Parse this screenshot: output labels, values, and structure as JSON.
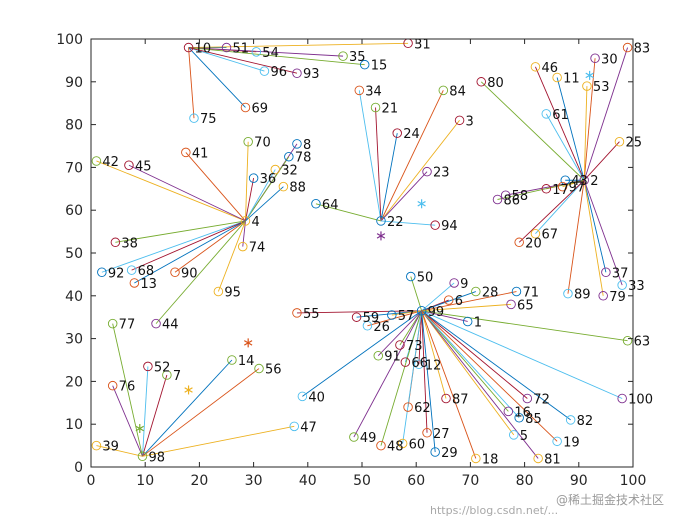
{
  "chart_data": {
    "type": "scatter",
    "title": "",
    "xlabel": "",
    "ylabel": "",
    "xlim": [
      0,
      100
    ],
    "ylim": [
      0,
      100
    ],
    "xticks": [
      0,
      10,
      20,
      30,
      40,
      50,
      60,
      70,
      80,
      90,
      100
    ],
    "yticks": [
      0,
      10,
      20,
      30,
      40,
      50,
      60,
      70,
      80,
      90,
      100
    ],
    "grid": false,
    "legend": "none",
    "points": [
      {
        "id": "1",
        "x": 69.5,
        "y": 34
      },
      {
        "id": "2",
        "x": 91,
        "y": 67
      },
      {
        "id": "3",
        "x": 68,
        "y": 81
      },
      {
        "id": "4",
        "x": 28.5,
        "y": 57.5
      },
      {
        "id": "5",
        "x": 78,
        "y": 7.5
      },
      {
        "id": "6",
        "x": 66,
        "y": 39
      },
      {
        "id": "7",
        "x": 14,
        "y": 21.5
      },
      {
        "id": "8",
        "x": 38,
        "y": 75.5
      },
      {
        "id": "9",
        "x": 67,
        "y": 43
      },
      {
        "id": "10",
        "x": 18,
        "y": 98
      },
      {
        "id": "11",
        "x": 86,
        "y": 91
      },
      {
        "id": "12",
        "x": 60.5,
        "y": 24
      },
      {
        "id": "13",
        "x": 8,
        "y": 43
      },
      {
        "id": "14",
        "x": 26,
        "y": 25
      },
      {
        "id": "15",
        "x": 50.5,
        "y": 94
      },
      {
        "id": "16",
        "x": 77,
        "y": 13
      },
      {
        "id": "17",
        "x": 84,
        "y": 65
      },
      {
        "id": "18",
        "x": 71,
        "y": 2
      },
      {
        "id": "19",
        "x": 86,
        "y": 6
      },
      {
        "id": "20",
        "x": 79,
        "y": 52.5
      },
      {
        "id": "21",
        "x": 52.5,
        "y": 84
      },
      {
        "id": "22",
        "x": 53.5,
        "y": 57.5
      },
      {
        "id": "23",
        "x": 62,
        "y": 69
      },
      {
        "id": "24",
        "x": 56.5,
        "y": 78
      },
      {
        "id": "25",
        "x": 97.5,
        "y": 76
      },
      {
        "id": "26",
        "x": 51,
        "y": 33
      },
      {
        "id": "27",
        "x": 62,
        "y": 8
      },
      {
        "id": "28",
        "x": 71,
        "y": 41
      },
      {
        "id": "29",
        "x": 63.5,
        "y": 3.5
      },
      {
        "id": "30",
        "x": 93,
        "y": 95.5
      },
      {
        "id": "31",
        "x": 58.5,
        "y": 99
      },
      {
        "id": "32",
        "x": 34,
        "y": 69.5
      },
      {
        "id": "33",
        "x": 98,
        "y": 42.5
      },
      {
        "id": "34",
        "x": 49.5,
        "y": 88
      },
      {
        "id": "35",
        "x": 46.5,
        "y": 96
      },
      {
        "id": "36",
        "x": 30,
        "y": 67.5
      },
      {
        "id": "37",
        "x": 95,
        "y": 45.5
      },
      {
        "id": "38",
        "x": 4.5,
        "y": 52.5
      },
      {
        "id": "39",
        "x": 1,
        "y": 5
      },
      {
        "id": "40",
        "x": 39,
        "y": 16.5
      },
      {
        "id": "41",
        "x": 17.5,
        "y": 73.5
      },
      {
        "id": "42",
        "x": 1,
        "y": 71.5
      },
      {
        "id": "43",
        "x": 87.5,
        "y": 67
      },
      {
        "id": "44",
        "x": 12,
        "y": 33.5
      },
      {
        "id": "45",
        "x": 7,
        "y": 70.5
      },
      {
        "id": "46",
        "x": 82,
        "y": 93.5
      },
      {
        "id": "47",
        "x": 37.5,
        "y": 9.5
      },
      {
        "id": "48",
        "x": 53.5,
        "y": 5
      },
      {
        "id": "49",
        "x": 48.5,
        "y": 7
      },
      {
        "id": "50",
        "x": 59,
        "y": 44.5
      },
      {
        "id": "51",
        "x": 25,
        "y": 98
      },
      {
        "id": "52",
        "x": 10.5,
        "y": 23.5
      },
      {
        "id": "53",
        "x": 91.5,
        "y": 89
      },
      {
        "id": "54",
        "x": 30.5,
        "y": 97
      },
      {
        "id": "55",
        "x": 38,
        "y": 36
      },
      {
        "id": "56",
        "x": 31,
        "y": 23
      },
      {
        "id": "57",
        "x": 55.5,
        "y": 35.5
      },
      {
        "id": "58",
        "x": 76.5,
        "y": 63.5
      },
      {
        "id": "59",
        "x": 49,
        "y": 35
      },
      {
        "id": "60",
        "x": 57.5,
        "y": 5.5
      },
      {
        "id": "61",
        "x": 84,
        "y": 82.5
      },
      {
        "id": "62",
        "x": 58.5,
        "y": 14
      },
      {
        "id": "63",
        "x": 99,
        "y": 29.5
      },
      {
        "id": "64",
        "x": 41.5,
        "y": 61.5
      },
      {
        "id": "65",
        "x": 77.5,
        "y": 38
      },
      {
        "id": "66",
        "x": 58,
        "y": 24.5
      },
      {
        "id": "67",
        "x": 82,
        "y": 54.5
      },
      {
        "id": "68",
        "x": 7.5,
        "y": 46
      },
      {
        "id": "69",
        "x": 28.5,
        "y": 84
      },
      {
        "id": "70",
        "x": 29,
        "y": 76
      },
      {
        "id": "71",
        "x": 78.5,
        "y": 41
      },
      {
        "id": "72",
        "x": 80.5,
        "y": 16
      },
      {
        "id": "73",
        "x": 57,
        "y": 28.5
      },
      {
        "id": "74",
        "x": 28,
        "y": 51.5
      },
      {
        "id": "75",
        "x": 19,
        "y": 81.5
      },
      {
        "id": "76",
        "x": 4,
        "y": 19
      },
      {
        "id": "77",
        "x": 4,
        "y": 33.5
      },
      {
        "id": "78",
        "x": 36.5,
        "y": 72.5
      },
      {
        "id": "79",
        "x": 94.5,
        "y": 40
      },
      {
        "id": "80",
        "x": 72,
        "y": 90
      },
      {
        "id": "81",
        "x": 82.5,
        "y": 2
      },
      {
        "id": "82",
        "x": 88.5,
        "y": 11
      },
      {
        "id": "83",
        "x": 99,
        "y": 98
      },
      {
        "id": "84",
        "x": 65,
        "y": 88
      },
      {
        "id": "85",
        "x": 79,
        "y": 11.5
      },
      {
        "id": "86",
        "x": 75,
        "y": 62.5
      },
      {
        "id": "87",
        "x": 65.5,
        "y": 16
      },
      {
        "id": "88",
        "x": 35.5,
        "y": 65.5
      },
      {
        "id": "89",
        "x": 88,
        "y": 40.5
      },
      {
        "id": "90",
        "x": 15.5,
        "y": 45.5
      },
      {
        "id": "91",
        "x": 53,
        "y": 26
      },
      {
        "id": "92",
        "x": 2,
        "y": 45.5
      },
      {
        "id": "93",
        "x": 38,
        "y": 92
      },
      {
        "id": "94",
        "x": 63.5,
        "y": 56.5
      },
      {
        "id": "95",
        "x": 23.5,
        "y": 41
      },
      {
        "id": "96",
        "x": 32,
        "y": 92.5
      },
      {
        "id": "97",
        "x": 87,
        "y": 65.5
      },
      {
        "id": "98",
        "x": 9.5,
        "y": 2.5
      },
      {
        "id": "99",
        "x": 61,
        "y": 36.5
      },
      {
        "id": "100",
        "x": 98,
        "y": 16
      }
    ],
    "centers": [
      {
        "x": 61,
        "y": 61.5,
        "color": "#4DBEEE"
      },
      {
        "x": 53.5,
        "y": 54,
        "color": "#7E2F8E"
      },
      {
        "x": 92,
        "y": 91.5,
        "color": "#4DBEEE"
      },
      {
        "x": 29,
        "y": 29,
        "color": "#D95319"
      },
      {
        "x": 18,
        "y": 18,
        "color": "#EDB120"
      },
      {
        "x": 9,
        "y": 9,
        "color": "#77AC30"
      }
    ],
    "hubs": [
      "10",
      "4",
      "22",
      "2",
      "99",
      "98"
    ],
    "clusters": [
      {
        "hub": "10",
        "members": [
          "51",
          "54",
          "31",
          "35",
          "15",
          "96",
          "93",
          "69",
          "75"
        ]
      },
      {
        "hub": "4",
        "members": [
          "70",
          "8",
          "78",
          "32",
          "36",
          "88",
          "41",
          "42",
          "45",
          "38",
          "92",
          "68",
          "13",
          "90",
          "95",
          "74",
          "44"
        ]
      },
      {
        "hub": "22",
        "members": [
          "34",
          "21",
          "24",
          "84",
          "3",
          "23",
          "64",
          "94"
        ]
      },
      {
        "hub": "2",
        "members": [
          "46",
          "11",
          "30",
          "53",
          "83",
          "80",
          "61",
          "25",
          "43",
          "17",
          "97",
          "58",
          "86",
          "67",
          "20",
          "37",
          "89",
          "79",
          "33"
        ]
      },
      {
        "hub": "99",
        "members": [
          "50",
          "9",
          "6",
          "28",
          "71",
          "65",
          "1",
          "63",
          "100",
          "55",
          "59",
          "26",
          "57",
          "91",
          "73",
          "66",
          "12",
          "40",
          "62",
          "87",
          "49",
          "48",
          "60",
          "27",
          "29",
          "18",
          "5",
          "81",
          "16",
          "85",
          "72",
          "82",
          "19"
        ]
      },
      {
        "hub": "98",
        "members": [
          "39",
          "76",
          "77",
          "52",
          "7",
          "14",
          "56",
          "47"
        ]
      }
    ],
    "series_colors": [
      "#0072BD",
      "#D95319",
      "#EDB120",
      "#7E2F8E",
      "#77AC30",
      "#4DBEEE",
      "#A2142F"
    ]
  },
  "watermark": {
    "left": "https://blog.csdn.net/...",
    "right": "@稀土掘金技术社区"
  }
}
